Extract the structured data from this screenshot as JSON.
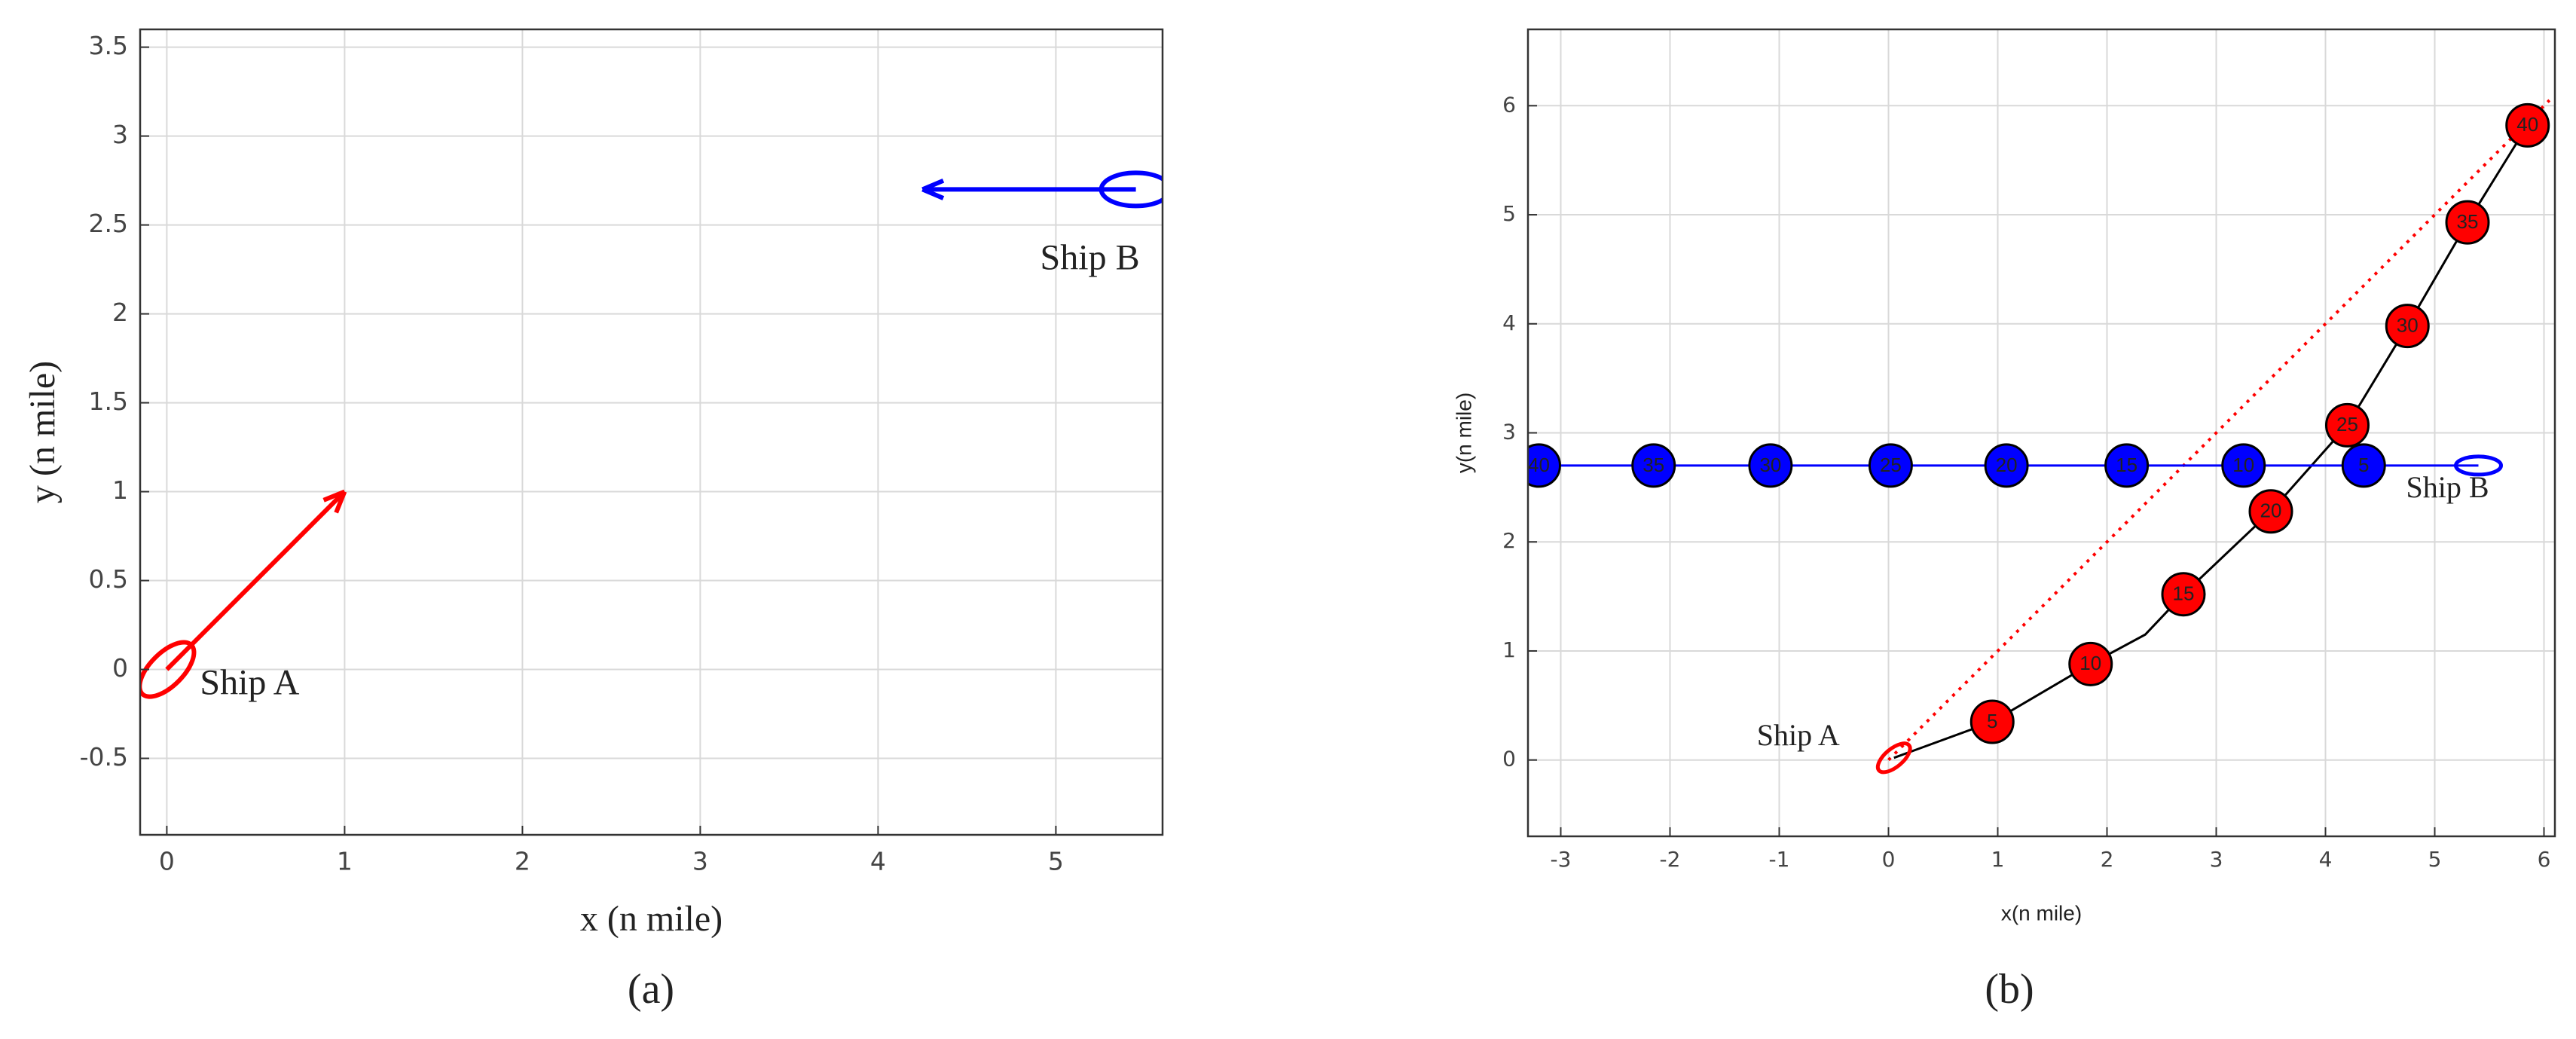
{
  "chart_data": [
    {
      "type": "vector",
      "caption": "(a)",
      "xlabel": "x (n mile)",
      "ylabel": "y (n mile)",
      "xlim": [
        -0.15,
        5.6
      ],
      "ylim": [
        -0.93,
        3.6
      ],
      "xticks": [
        0,
        1,
        2,
        3,
        4,
        5
      ],
      "yticks": [
        -0.5,
        0,
        0.5,
        1,
        1.5,
        2,
        2.5,
        3,
        3.5
      ],
      "grid": true,
      "ships": [
        {
          "name": "Ship A",
          "color": "#ff0000",
          "x": [
            0,
            1
          ],
          "y": [
            0,
            1
          ]
        },
        {
          "name": "Ship B",
          "color": "#0000ff",
          "x": [
            5.45,
            4.25
          ],
          "y": [
            2.7,
            2.7
          ]
        }
      ]
    },
    {
      "type": "track",
      "caption": "(b)",
      "xlabel": "x(n mile)",
      "ylabel": "y(n mile)",
      "xlim": [
        -3.3,
        6.1
      ],
      "ylim": [
        -0.7,
        6.7
      ],
      "xticks": [
        -3,
        -2,
        -1,
        0,
        1,
        2,
        3,
        4,
        5,
        6
      ],
      "yticks": [
        0,
        1,
        2,
        3,
        4,
        5,
        6
      ],
      "grid": true,
      "planned": {
        "color": "#ff0000",
        "x": [
          0,
          6.05
        ],
        "y": [
          0,
          6.05
        ]
      },
      "series": [
        {
          "name": "Ship A",
          "color": "#ff0000",
          "line_color": "#000000",
          "x": [
            0.05,
            0.95,
            1.85,
            2.35,
            2.7,
            3.5,
            4.2,
            4.75,
            5.3,
            5.85
          ],
          "y": [
            0.02,
            0.35,
            0.88,
            1.15,
            1.52,
            2.28,
            3.07,
            3.98,
            4.93,
            5.82
          ],
          "marks": {
            "t": [
              5,
              10,
              15,
              20,
              25,
              30,
              35,
              40
            ],
            "x": [
              0.95,
              1.85,
              2.7,
              3.5,
              4.2,
              4.75,
              5.3,
              5.85
            ],
            "y": [
              0.35,
              0.88,
              1.52,
              2.28,
              3.07,
              3.98,
              4.93,
              5.82
            ]
          }
        },
        {
          "name": "Ship B",
          "color": "#0000ff",
          "line_color": "#0000ff",
          "x": [
            5.4,
            -3.2
          ],
          "y": [
            2.7,
            2.7
          ],
          "marks": {
            "t": [
              5,
              10,
              15,
              20,
              25,
              30,
              35,
              40
            ],
            "x": [
              4.35,
              3.25,
              2.18,
              1.08,
              0.02,
              -1.08,
              -2.15,
              -3.2
            ],
            "y": [
              2.7,
              2.7,
              2.7,
              2.7,
              2.7,
              2.7,
              2.7,
              2.7
            ]
          }
        }
      ]
    }
  ]
}
